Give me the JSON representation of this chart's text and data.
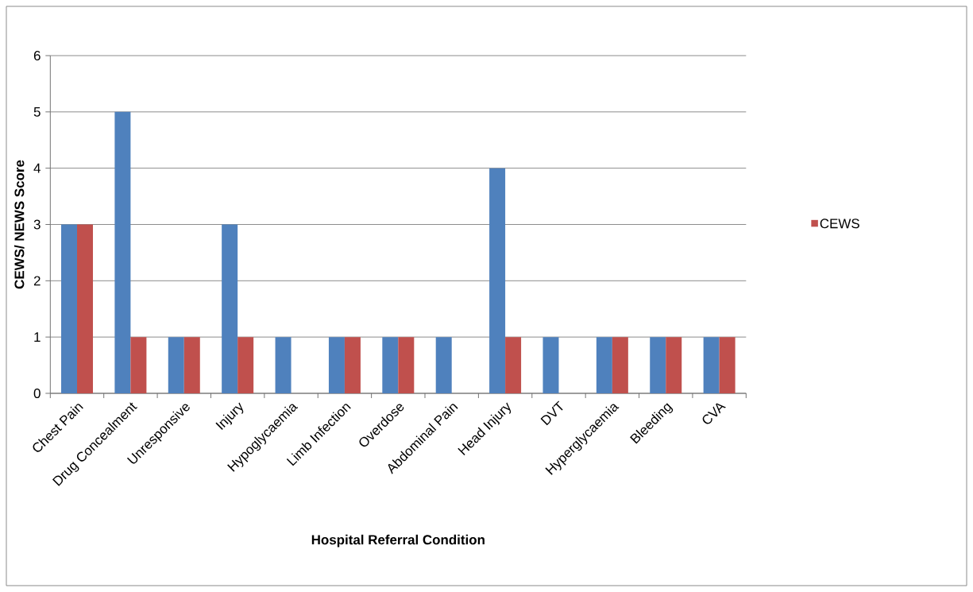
{
  "chart_data": {
    "type": "bar",
    "xlabel": "Hospital Referral Condition",
    "ylabel": "CEWS/ NEWS Score",
    "categories": [
      "Chest Pain",
      "Drug Concealment",
      "Unresponsive",
      "Injury",
      "Hypoglycaemia",
      "Limb Infection",
      "Overdose",
      "Abdominal Pain",
      "Head Injury",
      "DVT",
      "Hyperglycaemia",
      "Bleeding",
      "CVA"
    ],
    "series": [
      {
        "color": "#4f81bd",
        "values": [
          3,
          5,
          1,
          3,
          1,
          1,
          1,
          1,
          4,
          1,
          1,
          1,
          1
        ]
      },
      {
        "name": "CEWS",
        "color": "#c0504d",
        "values": [
          3,
          1,
          1,
          1,
          null,
          1,
          1,
          null,
          1,
          null,
          1,
          1,
          1
        ]
      }
    ],
    "ylim": [
      0,
      6
    ],
    "yticks": [
      0,
      1,
      2,
      3,
      4,
      5,
      6
    ],
    "grid": "y",
    "legend": "right"
  }
}
